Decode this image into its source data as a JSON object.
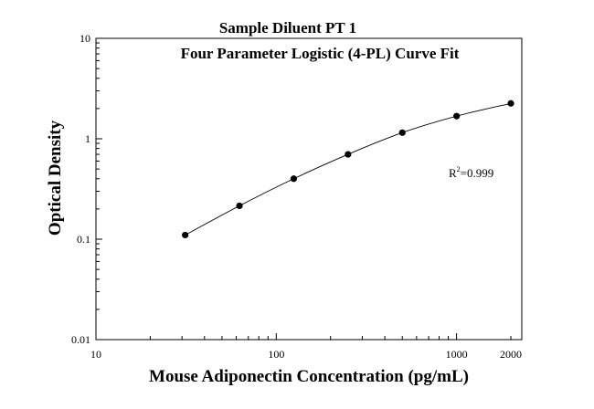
{
  "chart_data": {
    "type": "scatter",
    "title": "Sample Diluent PT 1",
    "subtitle": "Four Parameter Logistic (4-PL) Curve Fit",
    "xlabel": "Mouse Adiponectin Concentration (pg/mL)",
    "ylabel": "Optical Density",
    "xscale": "log",
    "yscale": "log",
    "xlim": [
      10,
      2300
    ],
    "ylim": [
      0.01,
      10
    ],
    "x_ticks": [
      {
        "value": 10,
        "label": "10"
      },
      {
        "value": 100,
        "label": "100"
      },
      {
        "value": 1000,
        "label": "1000"
      },
      {
        "value": 2000,
        "label": "2000"
      }
    ],
    "y_ticks": [
      {
        "value": 10,
        "label": "10"
      },
      {
        "value": 1,
        "label": "1"
      },
      {
        "value": 0.1,
        "label": "0.1"
      },
      {
        "value": 0.01,
        "label": "0.01"
      }
    ],
    "points": [
      {
        "x": 31.25,
        "y": 0.11
      },
      {
        "x": 62.5,
        "y": 0.215
      },
      {
        "x": 125,
        "y": 0.4
      },
      {
        "x": 250,
        "y": 0.7
      },
      {
        "x": 500,
        "y": 1.15
      },
      {
        "x": 1000,
        "y": 1.68
      },
      {
        "x": 2000,
        "y": 2.25
      }
    ],
    "fit_curve": "4-PL",
    "annotation": {
      "base": "R",
      "sup": "2",
      "text": "=0.999"
    },
    "grid": false,
    "legend": "none",
    "colors": {
      "marker": "#000000",
      "line": "#000000"
    }
  }
}
